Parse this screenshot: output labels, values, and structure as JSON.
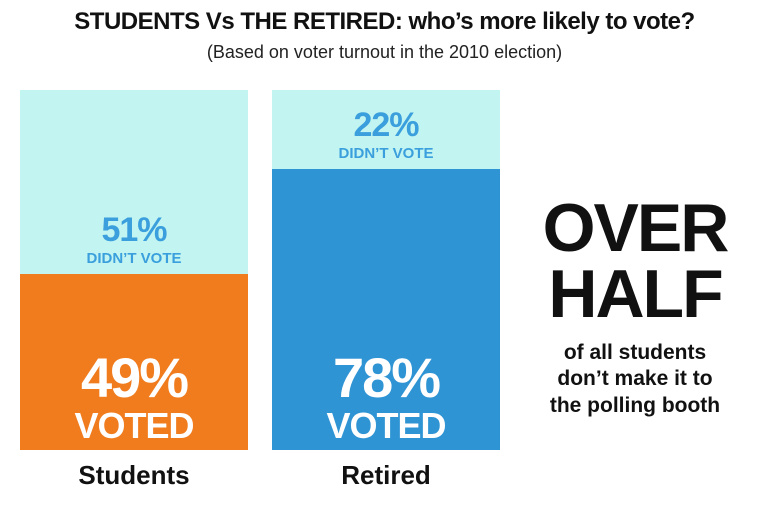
{
  "chart_data": {
    "type": "bar",
    "stacked": true,
    "title": "STUDENTS Vs THE RETIRED: who’s more likely to vote?",
    "subtitle": "(Based on voter turnout in the 2010 election)",
    "categories": [
      "Students",
      "Retired"
    ],
    "ylim": [
      0,
      100
    ],
    "bars": [
      {
        "category": "Students",
        "voted_value": 49,
        "voted_pct_label": "49%",
        "voted_text": "VOTED",
        "didnt_value": 51,
        "didnt_pct_label": "51%",
        "didnt_text": "DIDN’T VOTE",
        "voted_color": "#f07c1e",
        "didnt_color": "#c2f5f1",
        "didnt_text_color": "#3a9fdc"
      },
      {
        "category": "Retired",
        "voted_value": 78,
        "voted_pct_label": "78%",
        "voted_text": "VOTED",
        "didnt_value": 22,
        "didnt_pct_label": "22%",
        "didnt_text": "DIDN’T VOTE",
        "voted_color": "#2f94d4",
        "didnt_color": "#c2f5f1",
        "didnt_text_color": "#3a9fdc"
      }
    ],
    "annotation": {
      "big_line1": "OVER",
      "big_line2": "HALF",
      "small_line1": "of all students",
      "small_line2": "don’t make it to",
      "small_line3": "the polling booth"
    }
  }
}
